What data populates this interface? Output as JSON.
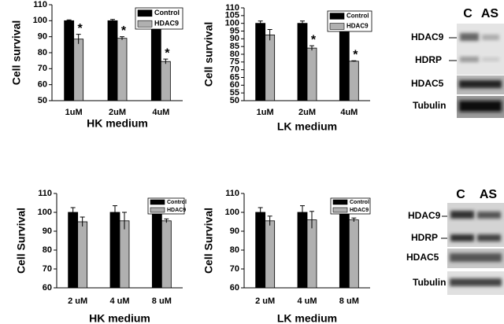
{
  "chart_data": [
    {
      "type": "bar",
      "xlabel": "HK medium",
      "ylabel": "Cell survival",
      "categories": [
        "1uM",
        "2uM",
        "4uM"
      ],
      "series": [
        {
          "name": "Control",
          "color": "#000000",
          "values": [
            100,
            100,
            100
          ],
          "errors": [
            0.5,
            0.8,
            6
          ]
        },
        {
          "name": "HDAC9",
          "color": "#b0b0b0",
          "values": [
            88.5,
            89,
            74.5
          ],
          "errors": [
            3,
            1,
            1.5
          ],
          "significance": [
            "*",
            "*",
            "*"
          ]
        }
      ],
      "ylim": [
        50,
        110
      ],
      "yticks": [
        50,
        60,
        70,
        80,
        90,
        100,
        110
      ],
      "legend": "upper right"
    },
    {
      "type": "bar",
      "xlabel": "LK medium",
      "ylabel": "Cell survival",
      "categories": [
        "1uM",
        "2uM",
        "4uM"
      ],
      "series": [
        {
          "name": "Control",
          "color": "#000000",
          "values": [
            100,
            100,
            100
          ],
          "errors": [
            1.5,
            1.5,
            3.5
          ]
        },
        {
          "name": "HDAC9",
          "color": "#b0b0b0",
          "values": [
            92.5,
            84,
            75.5
          ],
          "errors": [
            3.5,
            1.5,
            0.3
          ],
          "significance": [
            null,
            "*",
            "*"
          ]
        }
      ],
      "ylim": [
        50,
        110
      ],
      "yticks": [
        50,
        55,
        60,
        65,
        70,
        75,
        80,
        85,
        90,
        95,
        100,
        105,
        110
      ],
      "legend": "upper right"
    },
    {
      "type": "bar",
      "xlabel": "HK medium",
      "ylabel": "Cell Survival",
      "categories": [
        "2 uM",
        "4 uM",
        "8 uM"
      ],
      "series": [
        {
          "name": "Control",
          "color": "#000000",
          "values": [
            100,
            100,
            100
          ],
          "errors": [
            2.5,
            3.5,
            3
          ]
        },
        {
          "name": "HDAC9",
          "color": "#b0b0b0",
          "values": [
            95,
            95.5,
            95.5
          ],
          "errors": [
            2.5,
            4.5,
            1
          ]
        }
      ],
      "ylim": [
        60,
        110
      ],
      "yticks": [
        60,
        70,
        80,
        90,
        100,
        110
      ],
      "legend": "upper right"
    },
    {
      "type": "bar",
      "xlabel": "LK medium",
      "ylabel": "Cell Survival",
      "categories": [
        "2 uM",
        "4 uM",
        "8 uM"
      ],
      "series": [
        {
          "name": "Control",
          "color": "#000000",
          "values": [
            100,
            100,
            100
          ],
          "errors": [
            2.5,
            3.5,
            3
          ]
        },
        {
          "name": "HDAC9",
          "color": "#b0b0b0",
          "values": [
            95.5,
            96,
            96
          ],
          "errors": [
            2.5,
            4.5,
            1
          ]
        }
      ],
      "ylim": [
        60,
        110
      ],
      "yticks": [
        60,
        70,
        80,
        90,
        100,
        110
      ],
      "legend": "upper right"
    }
  ],
  "blots": [
    {
      "columns": [
        "C",
        "AS"
      ],
      "rows": [
        "HDAC9",
        "HDRP",
        "HDAC5",
        "Tubulin"
      ]
    },
    {
      "columns": [
        "C",
        "AS"
      ],
      "rows": [
        "HDAC9",
        "HDRP",
        "HDAC5",
        "Tubulin"
      ]
    }
  ]
}
